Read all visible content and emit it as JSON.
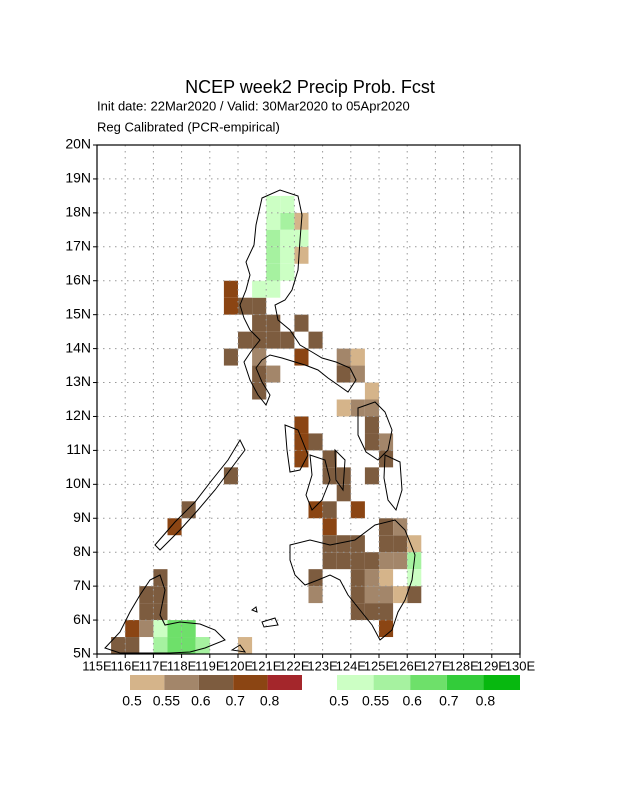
{
  "chart_data": {
    "type": "grid-map",
    "title": "NCEP week2 Precip Prob. Fcst",
    "subtitle": "Init date: 22Mar2020 / Valid: 30Mar2020 to 05Apr2020",
    "subtitle2": "Reg Calibrated (PCR-empirical)",
    "xlim": [
      115,
      130
    ],
    "ylim": [
      5,
      20
    ],
    "grid": true,
    "cell_size": 0.5,
    "xticks": [
      {
        "value": 115,
        "label": "115E"
      },
      {
        "value": 116,
        "label": "116E"
      },
      {
        "value": 117,
        "label": "117E"
      },
      {
        "value": 118,
        "label": "118E"
      },
      {
        "value": 119,
        "label": "119E"
      },
      {
        "value": 120,
        "label": "120E"
      },
      {
        "value": 121,
        "label": "121E"
      },
      {
        "value": 122,
        "label": "122E"
      },
      {
        "value": 123,
        "label": "123E"
      },
      {
        "value": 124,
        "label": "124E"
      },
      {
        "value": 125,
        "label": "125E"
      },
      {
        "value": 126,
        "label": "126E"
      },
      {
        "value": 127,
        "label": "127E"
      },
      {
        "value": 128,
        "label": "128E"
      },
      {
        "value": 129,
        "label": "129E"
      },
      {
        "value": 130,
        "label": "130E"
      }
    ],
    "yticks": [
      {
        "value": 5,
        "label": "5N"
      },
      {
        "value": 6,
        "label": "6N"
      },
      {
        "value": 7,
        "label": "7N"
      },
      {
        "value": 8,
        "label": "8N"
      },
      {
        "value": 9,
        "label": "9N"
      },
      {
        "value": 10,
        "label": "10N"
      },
      {
        "value": 11,
        "label": "11N"
      },
      {
        "value": 12,
        "label": "12N"
      },
      {
        "value": 13,
        "label": "13N"
      },
      {
        "value": 14,
        "label": "14N"
      },
      {
        "value": 15,
        "label": "15N"
      },
      {
        "value": 16,
        "label": "16N"
      },
      {
        "value": 17,
        "label": "17N"
      },
      {
        "value": 18,
        "label": "18N"
      },
      {
        "value": 19,
        "label": "19N"
      },
      {
        "value": 20,
        "label": "20N"
      }
    ],
    "below_legend": {
      "ticks": [
        0.5,
        0.55,
        0.6,
        0.7,
        0.8
      ],
      "colors": [
        "#d5b48a",
        "#a3866a",
        "#7d5c3f",
        "#8b4513",
        "#a4262b"
      ]
    },
    "above_legend": {
      "ticks": [
        0.5,
        0.55,
        0.6,
        0.7,
        0.8
      ],
      "colors": [
        "#ccffc4",
        "#a6f2a0",
        "#6ee06a",
        "#33cc3a",
        "#07b80f"
      ]
    },
    "below_cells": [
      [
        119.5,
        15,
        0.7
      ],
      [
        119.5,
        15.5,
        0.7
      ],
      [
        120,
        15,
        0.6
      ],
      [
        120.5,
        15,
        0.6
      ],
      [
        120.5,
        14.5,
        0.6
      ],
      [
        121,
        14.5,
        0.6
      ],
      [
        121,
        14,
        0.6
      ],
      [
        120.5,
        14,
        0.6
      ],
      [
        120,
        14,
        0.6
      ],
      [
        119.5,
        13.5,
        0.6
      ],
      [
        120.5,
        13.5,
        0.55
      ],
      [
        120.5,
        13,
        0.6
      ],
      [
        121,
        13,
        0.55
      ],
      [
        120.5,
        12.5,
        0.6
      ],
      [
        122,
        14.5,
        0.6
      ],
      [
        122,
        13.5,
        0.7
      ],
      [
        122.5,
        14,
        0.6
      ],
      [
        121.5,
        14,
        0.6
      ],
      [
        122,
        17.5,
        0.5
      ],
      [
        122,
        16.5,
        0.5
      ],
      [
        123.5,
        13.5,
        0.55
      ],
      [
        124,
        13.5,
        0.5
      ],
      [
        124,
        13,
        0.55
      ],
      [
        123.5,
        13,
        0.6
      ],
      [
        122,
        11,
        0.7
      ],
      [
        122,
        11.5,
        0.7
      ],
      [
        122,
        10.5,
        0.7
      ],
      [
        122.5,
        11,
        0.6
      ],
      [
        123,
        10.5,
        0.6
      ],
      [
        123,
        10,
        0.6
      ],
      [
        123.5,
        10,
        0.6
      ],
      [
        122.5,
        9,
        0.7
      ],
      [
        123,
        9,
        0.6
      ],
      [
        123,
        8.5,
        0.7
      ],
      [
        124,
        9,
        0.7
      ],
      [
        123.5,
        9.5,
        0.6
      ],
      [
        124,
        12,
        0.55
      ],
      [
        124.5,
        12,
        0.55
      ],
      [
        124.5,
        12.5,
        0.5
      ],
      [
        123.5,
        12,
        0.5
      ],
      [
        124.5,
        11.5,
        0.6
      ],
      [
        124.5,
        11,
        0.6
      ],
      [
        125,
        11,
        0.55
      ],
      [
        125,
        10.5,
        0.6
      ],
      [
        124.5,
        10,
        0.6
      ],
      [
        119.5,
        10,
        0.6
      ],
      [
        117.5,
        8.5,
        0.7
      ],
      [
        118,
        9,
        0.6
      ],
      [
        117,
        7,
        0.6
      ],
      [
        117,
        6.5,
        0.6
      ],
      [
        116.5,
        6,
        0.6
      ],
      [
        116.5,
        6.5,
        0.6
      ],
      [
        117,
        6,
        0.6
      ],
      [
        116,
        5.5,
        0.7
      ],
      [
        116,
        5,
        0.6
      ],
      [
        115.5,
        5,
        0.6
      ],
      [
        116.5,
        5.5,
        0.55
      ],
      [
        122.5,
        7,
        0.6
      ],
      [
        122.5,
        6.5,
        0.55
      ],
      [
        123,
        7.5,
        0.6
      ],
      [
        123,
        8,
        0.6
      ],
      [
        123.5,
        8,
        0.6
      ],
      [
        123.5,
        7.5,
        0.6
      ],
      [
        124,
        8,
        0.6
      ],
      [
        124,
        7.5,
        0.6
      ],
      [
        124,
        7,
        0.6
      ],
      [
        124,
        6.5,
        0.6
      ],
      [
        124,
        6,
        0.6
      ],
      [
        124.5,
        6,
        0.6
      ],
      [
        124.5,
        6.5,
        0.55
      ],
      [
        124.5,
        7,
        0.55
      ],
      [
        124.5,
        7.5,
        0.6
      ],
      [
        125,
        7.5,
        0.55
      ],
      [
        125,
        8,
        0.6
      ],
      [
        125,
        8.5,
        0.6
      ],
      [
        125.5,
        8,
        0.6
      ],
      [
        125.5,
        8.5,
        0.55
      ],
      [
        125,
        7,
        0.5
      ],
      [
        125,
        6.5,
        0.55
      ],
      [
        125,
        6,
        0.6
      ],
      [
        125,
        5.5,
        0.7
      ],
      [
        125.5,
        7.5,
        0.55
      ],
      [
        126,
        8,
        0.5
      ],
      [
        126,
        6.5,
        0.6
      ],
      [
        125.5,
        6.5,
        0.5
      ],
      [
        120,
        5,
        0.5
      ]
    ],
    "above_cells": [
      [
        121,
        17.5,
        0.5
      ],
      [
        121.5,
        17.5,
        0.55
      ],
      [
        121,
        17,
        0.55
      ],
      [
        121.5,
        17,
        0.5
      ],
      [
        121,
        16.5,
        0.55
      ],
      [
        121.5,
        16.5,
        0.5
      ],
      [
        122,
        17,
        0.5
      ],
      [
        121,
        16,
        0.55
      ],
      [
        121.5,
        16,
        0.5
      ],
      [
        121,
        15.5,
        0.5
      ],
      [
        120.5,
        15.5,
        0.5
      ],
      [
        121.5,
        18,
        0.5
      ],
      [
        121,
        18,
        0.5
      ],
      [
        117,
        5,
        0.55
      ],
      [
        117.5,
        5,
        0.6
      ],
      [
        118,
        5,
        0.6
      ],
      [
        118,
        5.5,
        0.6
      ],
      [
        117.5,
        5.5,
        0.6
      ],
      [
        117,
        5.5,
        0.5
      ],
      [
        118.5,
        5,
        0.55
      ],
      [
        126,
        7.5,
        0.55
      ],
      [
        126,
        7,
        0.5
      ]
    ]
  }
}
